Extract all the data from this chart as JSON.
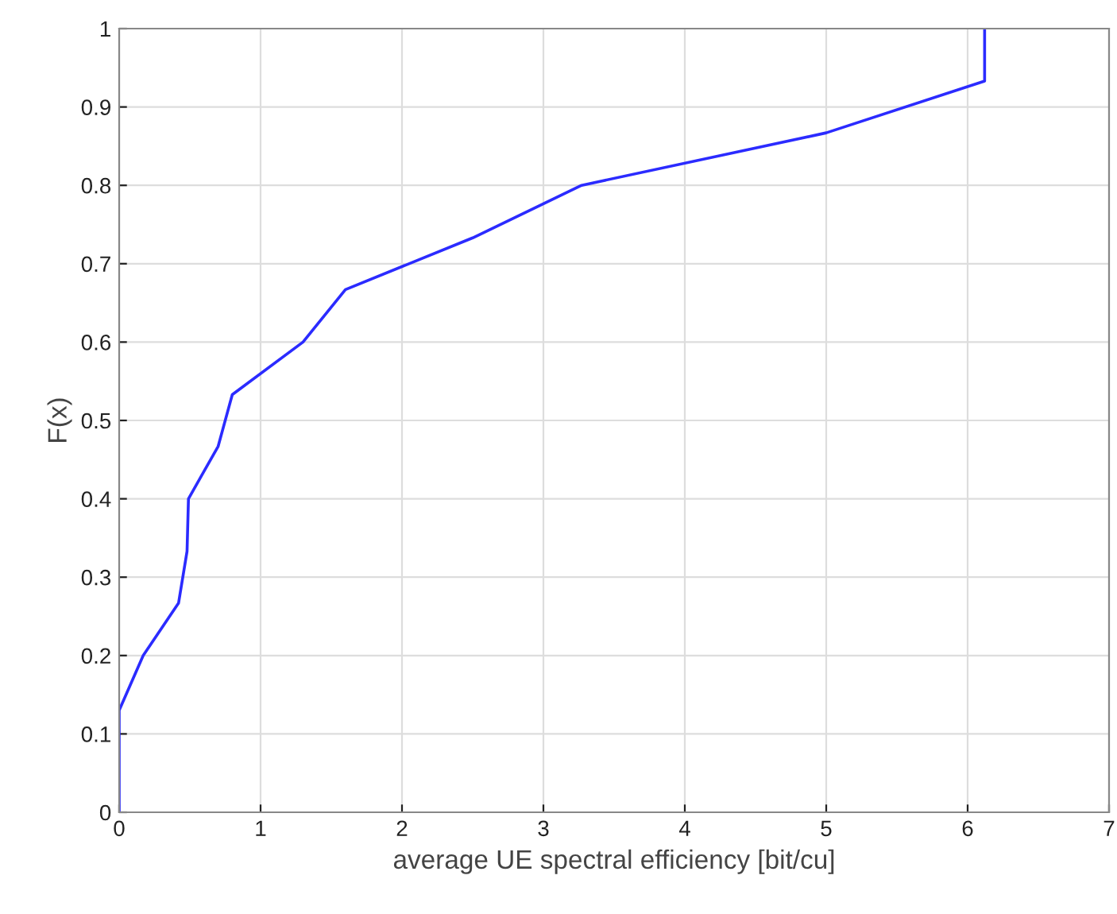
{
  "chart_data": {
    "type": "line",
    "xlabel": "average UE spectral efficiency [bit/cu]",
    "ylabel": "F(x)",
    "series": [
      {
        "color": "#2b2bff",
        "x": [
          0,
          0,
          0.17,
          0.42,
          0.48,
          0.49,
          0.7,
          0.8,
          1.3,
          1.6,
          2.5,
          3.27,
          5.0,
          6.12,
          6.12
        ],
        "values": [
          0,
          0.13,
          0.2,
          0.267,
          0.333,
          0.4,
          0.467,
          0.533,
          0.6,
          0.667,
          0.733,
          0.8,
          0.867,
          0.933,
          1.0
        ]
      }
    ],
    "xlim": [
      0,
      7
    ],
    "xticks": [
      0,
      1,
      2,
      3,
      4,
      5,
      6,
      7
    ],
    "ylim": [
      0,
      1
    ],
    "yticks": [
      0,
      0.1,
      0.2,
      0.3,
      0.4,
      0.5,
      0.6,
      0.7,
      0.8,
      0.9,
      1
    ],
    "grid": true,
    "marker": "none",
    "line_style": "solid"
  }
}
